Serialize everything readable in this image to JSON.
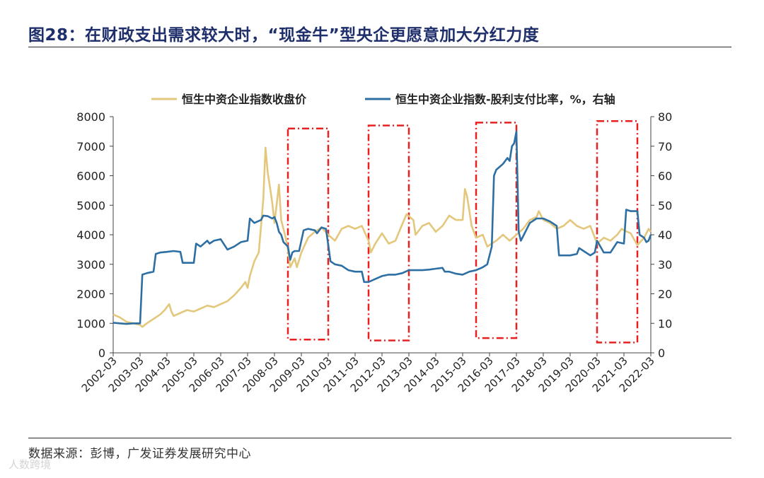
{
  "header": {
    "title": "图28：在财政支出需求较大时，“现金牛”型央企更愿意加大分红力度"
  },
  "footer": {
    "source": "数据来源：彭博，广发证券发展研究中心",
    "watermark": "人数跨境"
  },
  "chart_data": {
    "type": "line",
    "title": "",
    "xlabel": "",
    "ylabel": "",
    "y2label": "",
    "ylim": [
      0,
      8000
    ],
    "y2lim": [
      0,
      80
    ],
    "yticks": [
      0,
      1000,
      2000,
      3000,
      4000,
      5000,
      6000,
      7000,
      8000
    ],
    "y2ticks": [
      0,
      10,
      20,
      30,
      40,
      50,
      60,
      70,
      80
    ],
    "xlim": [
      "2002-03",
      "2022-03"
    ],
    "xticks": [
      "2002-03",
      "2003-03",
      "2004-03",
      "2005-03",
      "2006-03",
      "2007-03",
      "2008-03",
      "2009-03",
      "2010-03",
      "2011-03",
      "2012-03",
      "2013-03",
      "2014-03",
      "2015-03",
      "2016-03",
      "2017-03",
      "2018-03",
      "2019-03",
      "2020-03",
      "2021-03",
      "2022-03"
    ],
    "legend_position": "top",
    "colors": {
      "close": "#e3c77c",
      "payout": "#2e6fa3",
      "highlight": "#e8201f"
    },
    "highlight_periods": [
      {
        "start": "2008-09",
        "end": "2010-03",
        "ymin": 450,
        "ymax": 7600
      },
      {
        "start": "2011-09",
        "end": "2013-03",
        "ymin": 420,
        "ymax": 7700
      },
      {
        "start": "2015-09",
        "end": "2017-03",
        "ymin": 500,
        "ymax": 7800
      },
      {
        "start": "2020-03",
        "end": "2021-09",
        "ymin": 350,
        "ymax": 7850
      }
    ],
    "series": [
      {
        "name": "恒生中资企业指数收盘价",
        "axis": "left",
        "points": [
          [
            "2002-03",
            1300
          ],
          [
            "2002-06",
            1200
          ],
          [
            "2002-09",
            1050
          ],
          [
            "2002-12",
            1000
          ],
          [
            "2003-03",
            950
          ],
          [
            "2003-04",
            880
          ],
          [
            "2003-06",
            1000
          ],
          [
            "2003-09",
            1150
          ],
          [
            "2003-12",
            1300
          ],
          [
            "2004-02",
            1450
          ],
          [
            "2004-04",
            1650
          ],
          [
            "2004-05",
            1400
          ],
          [
            "2004-06",
            1250
          ],
          [
            "2004-09",
            1350
          ],
          [
            "2004-12",
            1450
          ],
          [
            "2005-03",
            1400
          ],
          [
            "2005-06",
            1500
          ],
          [
            "2005-09",
            1600
          ],
          [
            "2005-12",
            1550
          ],
          [
            "2006-03",
            1650
          ],
          [
            "2006-06",
            1750
          ],
          [
            "2006-09",
            1950
          ],
          [
            "2006-12",
            2200
          ],
          [
            "2007-02",
            2400
          ],
          [
            "2007-03",
            2200
          ],
          [
            "2007-04",
            2600
          ],
          [
            "2007-06",
            3100
          ],
          [
            "2007-08",
            3400
          ],
          [
            "2007-09",
            4300
          ],
          [
            "2007-10",
            5200
          ],
          [
            "2007-11",
            6950
          ],
          [
            "2007-12",
            6100
          ],
          [
            "2008-01",
            5600
          ],
          [
            "2008-02",
            5100
          ],
          [
            "2008-03",
            4400
          ],
          [
            "2008-04",
            5050
          ],
          [
            "2008-05",
            5700
          ],
          [
            "2008-06",
            4500
          ],
          [
            "2008-07",
            4200
          ],
          [
            "2008-08",
            3900
          ],
          [
            "2008-09",
            3500
          ],
          [
            "2008-10",
            2900
          ],
          [
            "2008-11",
            3050
          ],
          [
            "2008-12",
            3200
          ],
          [
            "2009-01",
            2900
          ],
          [
            "2009-03",
            3400
          ],
          [
            "2009-06",
            3900
          ],
          [
            "2009-09",
            4100
          ],
          [
            "2009-12",
            4250
          ],
          [
            "2010-03",
            4000
          ],
          [
            "2010-06",
            3800
          ],
          [
            "2010-09",
            4200
          ],
          [
            "2010-12",
            4300
          ],
          [
            "2011-03",
            4200
          ],
          [
            "2011-06",
            4300
          ],
          [
            "2011-09",
            3800
          ],
          [
            "2011-10",
            3400
          ],
          [
            "2011-12",
            3700
          ],
          [
            "2012-03",
            4050
          ],
          [
            "2012-06",
            3700
          ],
          [
            "2012-09",
            3800
          ],
          [
            "2012-12",
            4350
          ],
          [
            "2013-02",
            4700
          ],
          [
            "2013-05",
            4500
          ],
          [
            "2013-06",
            4000
          ],
          [
            "2013-09",
            4300
          ],
          [
            "2013-12",
            4400
          ],
          [
            "2014-03",
            4100
          ],
          [
            "2014-06",
            4300
          ],
          [
            "2014-09",
            4650
          ],
          [
            "2014-12",
            4500
          ],
          [
            "2015-03",
            4500
          ],
          [
            "2015-04",
            5550
          ],
          [
            "2015-05",
            5300
          ],
          [
            "2015-06",
            4800
          ],
          [
            "2015-07",
            4300
          ],
          [
            "2015-09",
            3900
          ],
          [
            "2015-12",
            4000
          ],
          [
            "2016-02",
            3600
          ],
          [
            "2016-06",
            3800
          ],
          [
            "2016-09",
            4000
          ],
          [
            "2016-12",
            3800
          ],
          [
            "2017-03",
            4000
          ],
          [
            "2017-06",
            4200
          ],
          [
            "2017-09",
            4500
          ],
          [
            "2017-12",
            4600
          ],
          [
            "2018-01",
            4800
          ],
          [
            "2018-03",
            4500
          ],
          [
            "2018-06",
            4400
          ],
          [
            "2018-09",
            4200
          ],
          [
            "2018-12",
            4300
          ],
          [
            "2019-03",
            4500
          ],
          [
            "2019-06",
            4300
          ],
          [
            "2019-09",
            4200
          ],
          [
            "2019-12",
            4300
          ],
          [
            "2020-03",
            3700
          ],
          [
            "2020-06",
            3900
          ],
          [
            "2020-09",
            3800
          ],
          [
            "2020-12",
            4000
          ],
          [
            "2021-02",
            4200
          ],
          [
            "2021-03",
            4150
          ],
          [
            "2021-06",
            4050
          ],
          [
            "2021-09",
            3650
          ],
          [
            "2021-12",
            3900
          ],
          [
            "2022-01",
            4050
          ],
          [
            "2022-02",
            4200
          ],
          [
            "2022-03",
            4100
          ]
        ]
      },
      {
        "name": "恒生中资企业指数-股利支付比率，%，右轴",
        "axis": "right",
        "points": [
          [
            "2002-03",
            10.2
          ],
          [
            "2002-06",
            10.0
          ],
          [
            "2002-09",
            9.8
          ],
          [
            "2002-12",
            10.0
          ],
          [
            "2003-03",
            10.0
          ],
          [
            "2003-04",
            26.5
          ],
          [
            "2003-06",
            27.0
          ],
          [
            "2003-09",
            27.5
          ],
          [
            "2003-10",
            33.5
          ],
          [
            "2003-12",
            34.0
          ],
          [
            "2004-03",
            34.2
          ],
          [
            "2004-06",
            34.5
          ],
          [
            "2004-09",
            34.2
          ],
          [
            "2004-10",
            30.5
          ],
          [
            "2004-12",
            30.5
          ],
          [
            "2005-03",
            30.5
          ],
          [
            "2005-04",
            37.0
          ],
          [
            "2005-06",
            36.0
          ],
          [
            "2005-09",
            38.0
          ],
          [
            "2005-10",
            37.0
          ],
          [
            "2005-12",
            38.0
          ],
          [
            "2006-03",
            38.5
          ],
          [
            "2006-06",
            35.0
          ],
          [
            "2006-09",
            36.0
          ],
          [
            "2006-12",
            37.5
          ],
          [
            "2007-03",
            38.0
          ],
          [
            "2007-04",
            45.5
          ],
          [
            "2007-06",
            44.0
          ],
          [
            "2007-09",
            45.0
          ],
          [
            "2007-10",
            46.5
          ],
          [
            "2007-12",
            46.3
          ],
          [
            "2008-02",
            45.5
          ],
          [
            "2008-03",
            46.0
          ],
          [
            "2008-04",
            44.0
          ],
          [
            "2008-05",
            41.0
          ],
          [
            "2008-06",
            40.0
          ],
          [
            "2008-07",
            37.5
          ],
          [
            "2008-09",
            36.0
          ],
          [
            "2008-10",
            31.5
          ],
          [
            "2008-11",
            34.0
          ],
          [
            "2008-12",
            34.5
          ],
          [
            "2009-02",
            34.5
          ],
          [
            "2009-03",
            38.0
          ],
          [
            "2009-04",
            41.5
          ],
          [
            "2009-06",
            42.0
          ],
          [
            "2009-09",
            41.5
          ],
          [
            "2009-10",
            40.5
          ],
          [
            "2009-12",
            42.5
          ],
          [
            "2010-02",
            42.0
          ],
          [
            "2010-03",
            36.5
          ],
          [
            "2010-04",
            31.0
          ],
          [
            "2010-06",
            30.0
          ],
          [
            "2010-09",
            29.5
          ],
          [
            "2010-12",
            28.0
          ],
          [
            "2011-03",
            27.5
          ],
          [
            "2011-06",
            27.5
          ],
          [
            "2011-07",
            24.0
          ],
          [
            "2011-09",
            24.0
          ],
          [
            "2011-12",
            25.0
          ],
          [
            "2012-03",
            26.0
          ],
          [
            "2012-06",
            26.5
          ],
          [
            "2012-09",
            26.5
          ],
          [
            "2012-12",
            27.0
          ],
          [
            "2013-03",
            28.0
          ],
          [
            "2013-06",
            28.0
          ],
          [
            "2013-09",
            28.0
          ],
          [
            "2013-12",
            28.2
          ],
          [
            "2014-03",
            28.5
          ],
          [
            "2014-06",
            28.8
          ],
          [
            "2014-07",
            27.5
          ],
          [
            "2014-09",
            27.5
          ],
          [
            "2014-12",
            26.8
          ],
          [
            "2015-03",
            26.5
          ],
          [
            "2015-06",
            27.5
          ],
          [
            "2015-09",
            28.0
          ],
          [
            "2015-12",
            29.0
          ],
          [
            "2016-02",
            30.0
          ],
          [
            "2016-04",
            36.0
          ],
          [
            "2016-05",
            60.0
          ],
          [
            "2016-06",
            62.0
          ],
          [
            "2016-09",
            64.0
          ],
          [
            "2016-11",
            66.0
          ],
          [
            "2016-12",
            65.0
          ],
          [
            "2017-01",
            70.0
          ],
          [
            "2017-02",
            71.0
          ],
          [
            "2017-03",
            75.0
          ],
          [
            "2017-04",
            41.0
          ],
          [
            "2017-05",
            38.0
          ],
          [
            "2017-06",
            39.5
          ],
          [
            "2017-09",
            44.0
          ],
          [
            "2017-12",
            45.5
          ],
          [
            "2018-03",
            45.5
          ],
          [
            "2018-06",
            44.5
          ],
          [
            "2018-09",
            43.0
          ],
          [
            "2018-10",
            33.0
          ],
          [
            "2018-12",
            33.0
          ],
          [
            "2019-03",
            33.0
          ],
          [
            "2019-06",
            33.5
          ],
          [
            "2019-07",
            35.5
          ],
          [
            "2019-09",
            34.5
          ],
          [
            "2019-12",
            33.0
          ],
          [
            "2020-02",
            34.0
          ],
          [
            "2020-03",
            38.0
          ],
          [
            "2020-06",
            34.0
          ],
          [
            "2020-09",
            34.0
          ],
          [
            "2020-12",
            37.5
          ],
          [
            "2021-03",
            37.0
          ],
          [
            "2021-04",
            48.5
          ],
          [
            "2021-06",
            48.0
          ],
          [
            "2021-09",
            48.0
          ],
          [
            "2021-10",
            40.0
          ],
          [
            "2021-12",
            39.0
          ],
          [
            "2022-01",
            37.5
          ],
          [
            "2022-02",
            38.0
          ],
          [
            "2022-03",
            40.0
          ]
        ]
      }
    ]
  }
}
